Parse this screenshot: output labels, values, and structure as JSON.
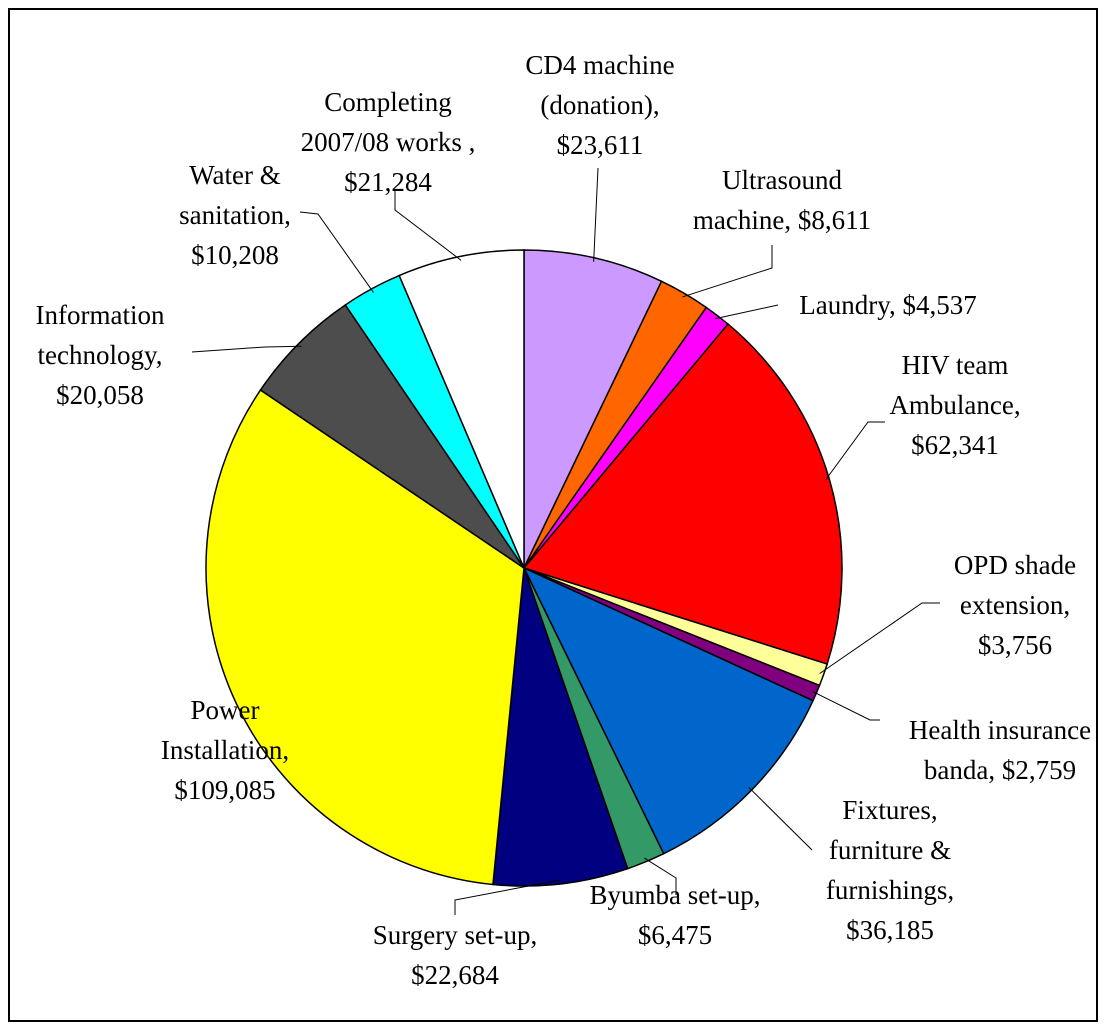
{
  "chart_data": {
    "type": "pie",
    "categories": [
      "CD4 machine (donation),",
      "Ultrasound machine,",
      "Laundry,",
      "HIV team Ambulance,",
      "OPD shade extension,",
      "Health insurance banda,",
      "Fixtures, furniture & furnishings,",
      "Byumba set-up,",
      "Surgery set-up,",
      "Power Installation,",
      "Information technology,",
      "Water & sanitation,",
      "Completing 2007/08 works ,"
    ],
    "values": [
      23611,
      8611,
      4537,
      62341,
      3756,
      2759,
      36185,
      6475,
      22684,
      109085,
      20058,
      10208,
      21284
    ],
    "value_labels": [
      "$23,611",
      "$8,611",
      "$4,537",
      "$62,341",
      "$3,756",
      "$2,759",
      "$36,185",
      "$6,475",
      "$22,684",
      "$109,085",
      "$20,058",
      "$10,208",
      "$21,284"
    ],
    "colors": [
      "#cc99ff",
      "#ff6600",
      "#ff00ff",
      "#ff0000",
      "#ffff99",
      "#800080",
      "#0066cc",
      "#339966",
      "#000080",
      "#ffff00",
      "#4d4d4d",
      "#00ffff",
      "#ffffff"
    ]
  }
}
